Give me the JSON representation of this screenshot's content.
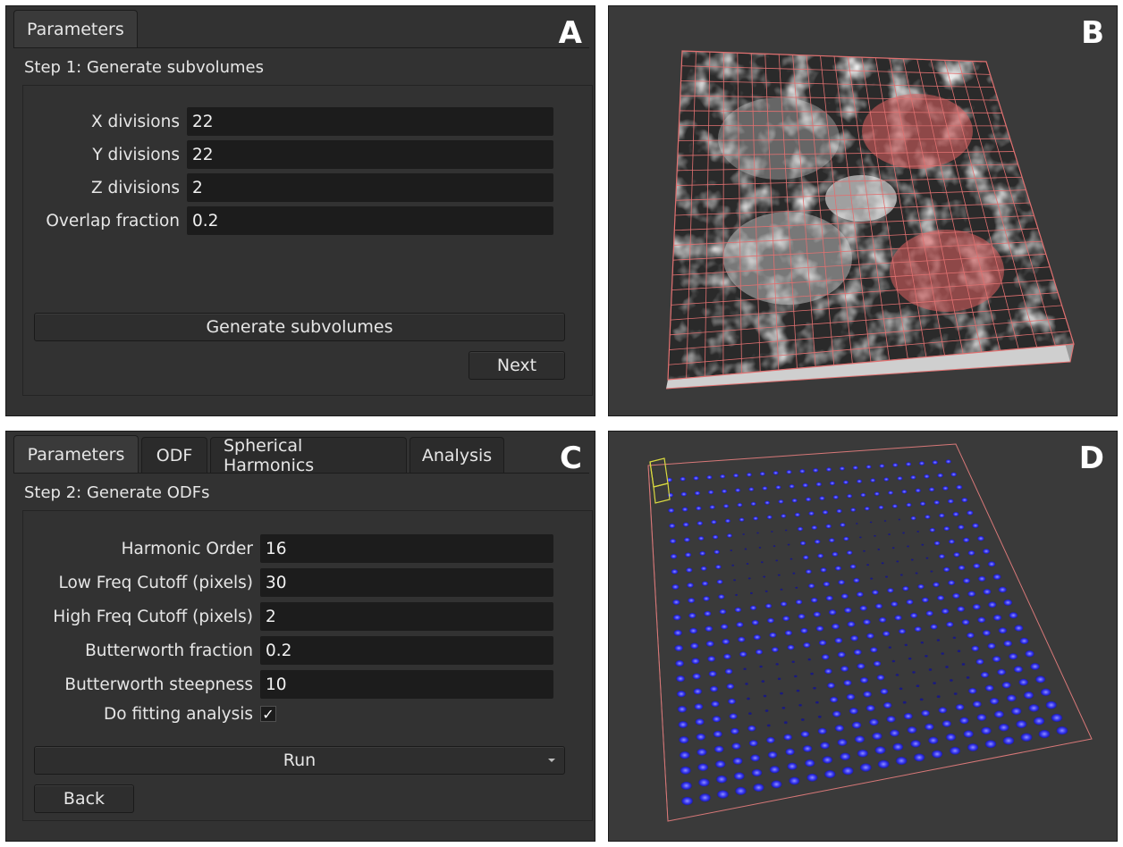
{
  "panelA": {
    "letter": "A",
    "tabs": [
      {
        "label": "Parameters"
      }
    ],
    "step_title": "Step 1: Generate subvolumes",
    "fields": [
      {
        "label": "X divisions",
        "value": "22"
      },
      {
        "label": "Y divisions",
        "value": "22"
      },
      {
        "label": "Z divisions",
        "value": "2"
      },
      {
        "label": "Overlap fraction",
        "value": "0.2"
      }
    ],
    "generate_label": "Generate subvolumes",
    "next_label": "Next"
  },
  "panelB": {
    "letter": "B"
  },
  "panelC": {
    "letter": "C",
    "tabs": [
      {
        "label": "Parameters"
      },
      {
        "label": "ODF"
      },
      {
        "label": "Spherical Harmonics"
      },
      {
        "label": "Analysis"
      }
    ],
    "step_title": "Step 2: Generate ODFs",
    "fields": [
      {
        "label": "Harmonic Order",
        "value": "16"
      },
      {
        "label": "Low Freq Cutoff (pixels)",
        "value": "30"
      },
      {
        "label": "High Freq Cutoff (pixels)",
        "value": "2"
      },
      {
        "label": "Butterworth fraction",
        "value": "0.2"
      },
      {
        "label": "Butterworth steepness",
        "value": "10"
      }
    ],
    "fitting_label": "Do fitting analysis",
    "fitting_checked": "✓",
    "run_label": "Run",
    "back_label": "Back"
  },
  "panelD": {
    "letter": "D"
  },
  "colors": {
    "panel_bg": "#323232",
    "field_bg": "#1c1c1c",
    "grid_red": "#e07070",
    "odf_blue": "#3b3bff",
    "box_yellow": "#d8d840"
  }
}
